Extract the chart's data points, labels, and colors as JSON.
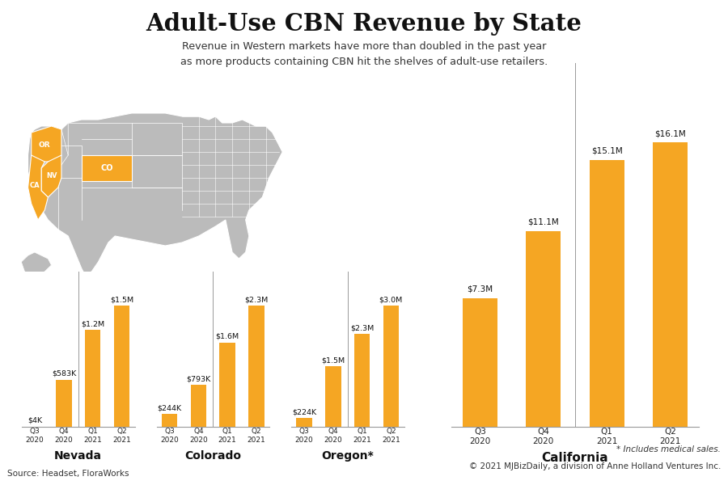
{
  "title": "Adult-Use CBN Revenue by State",
  "subtitle": "Revenue in Western markets have more than doubled in the past year\nas more products containing CBN hit the shelves of adult-use retailers.",
  "bar_color": "#F5A623",
  "background_color": "#FFFFFF",
  "states": [
    "Nevada",
    "Colorado",
    "Oregon*",
    "California"
  ],
  "quarters": [
    "Q3\n2020",
    "Q4\n2020",
    "Q1\n2021",
    "Q2\n2021"
  ],
  "data": {
    "Nevada": [
      4000,
      583000,
      1200000,
      1500000
    ],
    "Colorado": [
      244000,
      793000,
      1600000,
      2300000
    ],
    "Oregon*": [
      224000,
      1500000,
      2300000,
      3000000
    ],
    "California": [
      7300000,
      11100000,
      15100000,
      16100000
    ]
  },
  "labels": {
    "Nevada": [
      "$4K",
      "$583K",
      "$1.2M",
      "$1.5M"
    ],
    "Colorado": [
      "$244K",
      "$793K",
      "$1.6M",
      "$2.3M"
    ],
    "Oregon*": [
      "$224K",
      "$1.5M",
      "$2.3M",
      "$3.0M"
    ],
    "California": [
      "$7.3M",
      "$11.1M",
      "$15.1M",
      "$16.1M"
    ]
  },
  "source_left": "Source: Headset, FloraWorks",
  "source_right": "© 2021 MJBizDaily, a division of Anne Holland Ventures Inc.",
  "footnote": "* Includes medical sales.",
  "map_color": "#BBBBBB",
  "map_edge": "#FFFFFF",
  "highlight_color": "#F5A623"
}
